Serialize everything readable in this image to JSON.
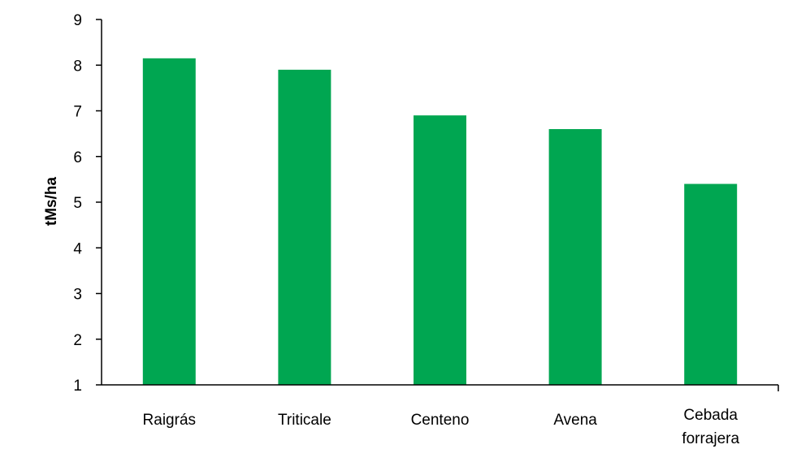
{
  "chart_data": {
    "type": "bar",
    "title": "",
    "xlabel": "",
    "ylabel": "tMs/ha",
    "categories": [
      [
        "Raigrás"
      ],
      [
        "Triticale"
      ],
      [
        "Centeno"
      ],
      [
        "Avena"
      ],
      [
        "Cebada",
        "forrajera"
      ]
    ],
    "values": [
      8.15,
      7.9,
      6.9,
      6.6,
      5.4
    ],
    "ylim": [
      1,
      9
    ],
    "yticks": [
      1,
      2,
      3,
      4,
      5,
      6,
      7,
      8,
      9
    ],
    "grid": false,
    "legend": "none",
    "bar_color": "#00a651"
  }
}
